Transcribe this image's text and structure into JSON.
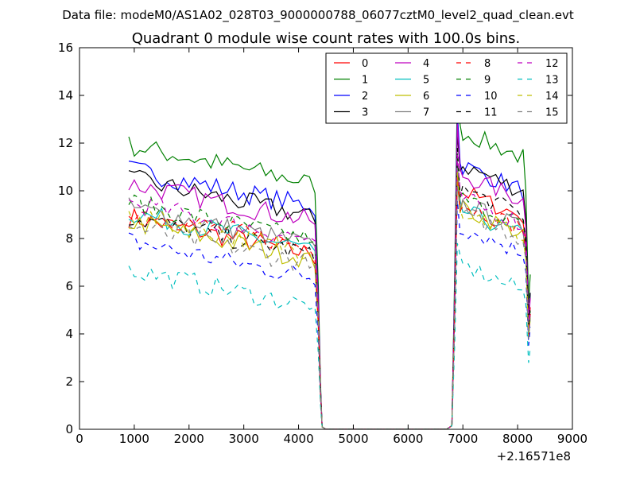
{
  "header": {
    "data_file": "Data file: modeM0/AS1A02_028T03_9000000788_06077cztM0_level2_quad_clean.evt"
  },
  "chart_data": {
    "type": "line",
    "title": "Quadrant 0 module wise count rates with 100.0s bins.",
    "xlabel": "",
    "ylabel": "",
    "xlim": [
      0,
      9000
    ],
    "ylim": [
      0,
      16
    ],
    "xticks": [
      0,
      1000,
      2000,
      3000,
      4000,
      5000,
      6000,
      7000,
      8000,
      9000
    ],
    "yticks": [
      0,
      2,
      4,
      6,
      8,
      10,
      12,
      14,
      16
    ],
    "x_offset_label": "+2.16571e8",
    "legend": {
      "placement": "top-right",
      "columns": 4
    },
    "x": [
      900,
      1000,
      1100,
      1200,
      1300,
      1400,
      1500,
      1600,
      1700,
      1800,
      1900,
      2000,
      2100,
      2200,
      2300,
      2400,
      2500,
      2600,
      2700,
      2800,
      2900,
      3000,
      3100,
      3200,
      3300,
      3400,
      3500,
      3600,
      3700,
      3800,
      3900,
      4000,
      4100,
      4200,
      4300,
      4360,
      4400,
      4430,
      4500,
      6700,
      6800,
      6850,
      6900,
      6950,
      7000,
      7100,
      7200,
      7300,
      7400,
      7500,
      7600,
      7700,
      7800,
      7900,
      8000,
      8100,
      8150,
      8200,
      8230
    ],
    "series": [
      {
        "name": "0",
        "color": "#ff0000",
        "dash": "solid",
        "base": 8.0,
        "peak": 10.5,
        "second": 9.3
      },
      {
        "name": "1",
        "color": "#008000",
        "dash": "solid",
        "base": 11.0,
        "peak": 14.4,
        "second": 11.8
      },
      {
        "name": "2",
        "color": "#0000ff",
        "dash": "solid",
        "base": 10.0,
        "peak": 13.3,
        "second": 10.4
      },
      {
        "name": "3",
        "color": "#000000",
        "dash": "solid",
        "base": 9.6,
        "peak": 12.4,
        "second": 10.4
      },
      {
        "name": "4",
        "color": "#bf00bf",
        "dash": "solid",
        "base": 9.4,
        "peak": 12.8,
        "second": 10.0
      },
      {
        "name": "5",
        "color": "#00bfbf",
        "dash": "solid",
        "base": 8.2,
        "peak": 11.0,
        "second": 8.5
      },
      {
        "name": "6",
        "color": "#bfbf00",
        "dash": "solid",
        "base": 7.8,
        "peak": 10.4,
        "second": 8.6
      },
      {
        "name": "7",
        "color": "#808080",
        "dash": "solid",
        "base": 8.4,
        "peak": 11.2,
        "second": 8.8
      },
      {
        "name": "8",
        "color": "#ff0000",
        "dash": "dashed",
        "base": 8.3,
        "peak": 10.6,
        "second": 8.8
      },
      {
        "name": "9",
        "color": "#008000",
        "dash": "dashed",
        "base": 8.6,
        "peak": 11.4,
        "second": 9.0
      },
      {
        "name": "10",
        "color": "#0000ff",
        "dash": "dashed",
        "base": 7.0,
        "peak": 9.6,
        "second": 7.8
      },
      {
        "name": "11",
        "color": "#000000",
        "dash": "dashed",
        "base": 8.0,
        "peak": 11.8,
        "second": 9.4
      },
      {
        "name": "12",
        "color": "#bf00bf",
        "dash": "dashed",
        "base": 8.6,
        "peak": 11.5,
        "second": 9.0
      },
      {
        "name": "13",
        "color": "#00bfbf",
        "dash": "dashed",
        "base": 5.8,
        "peak": 7.8,
        "second": 6.2
      },
      {
        "name": "14",
        "color": "#bfbf00",
        "dash": "dashed",
        "base": 8.1,
        "peak": 10.8,
        "second": 8.5
      },
      {
        "name": "15",
        "color": "#808080",
        "dash": "dashed",
        "base": 7.6,
        "peak": 10.2,
        "second": 8.4
      }
    ]
  }
}
